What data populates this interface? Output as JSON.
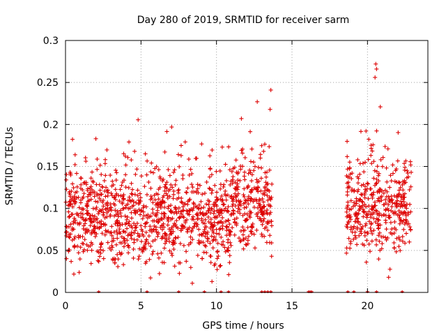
{
  "chart_data": {
    "type": "scatter",
    "title": "Day 280 of 2019, SRMTID for receiver sarm",
    "xlabel": "GPS time / hours",
    "ylabel": "SRMTID / TECUs",
    "xlim": [
      0,
      24
    ],
    "ylim": [
      0,
      0.3
    ],
    "x_ticks": [
      0,
      5,
      10,
      15,
      20
    ],
    "x_tick_labels": [
      "0",
      "5",
      "10",
      "15",
      "20"
    ],
    "y_ticks": [
      0,
      0.05,
      0.1,
      0.15,
      0.2,
      0.25,
      0.3
    ],
    "y_tick_labels": [
      "0",
      "0.05",
      "0.1",
      "0.15",
      "0.2",
      "0.25",
      "0.3"
    ],
    "grid": true,
    "marker": "+",
    "series_color": "#dd0000",
    "segments": [
      {
        "x_start": 0.0,
        "x_end": 13.7,
        "y_min": 0.01,
        "y_max": 0.245
      },
      {
        "x_start": 18.6,
        "x_end": 22.9,
        "y_min": 0.02,
        "y_max": 0.275
      }
    ],
    "notable_points": [
      {
        "x": 13.6,
        "y": 0.241
      },
      {
        "x": 13.55,
        "y": 0.218
      },
      {
        "x": 20.55,
        "y": 0.272
      },
      {
        "x": 20.6,
        "y": 0.266
      },
      {
        "x": 20.5,
        "y": 0.256
      },
      {
        "x": 20.85,
        "y": 0.221
      },
      {
        "x": 11.65,
        "y": 0.207
      },
      {
        "x": 21.4,
        "y": 0.018
      },
      {
        "x": 9.7,
        "y": 0.013
      }
    ],
    "zero_markers": [
      2.2,
      5.4,
      7.5,
      9.2,
      10.3,
      10.8,
      13.0,
      13.2,
      13.4,
      13.6,
      16.1,
      16.2,
      16.3,
      18.7,
      19.1,
      20.0,
      20.6,
      22.3
    ]
  }
}
